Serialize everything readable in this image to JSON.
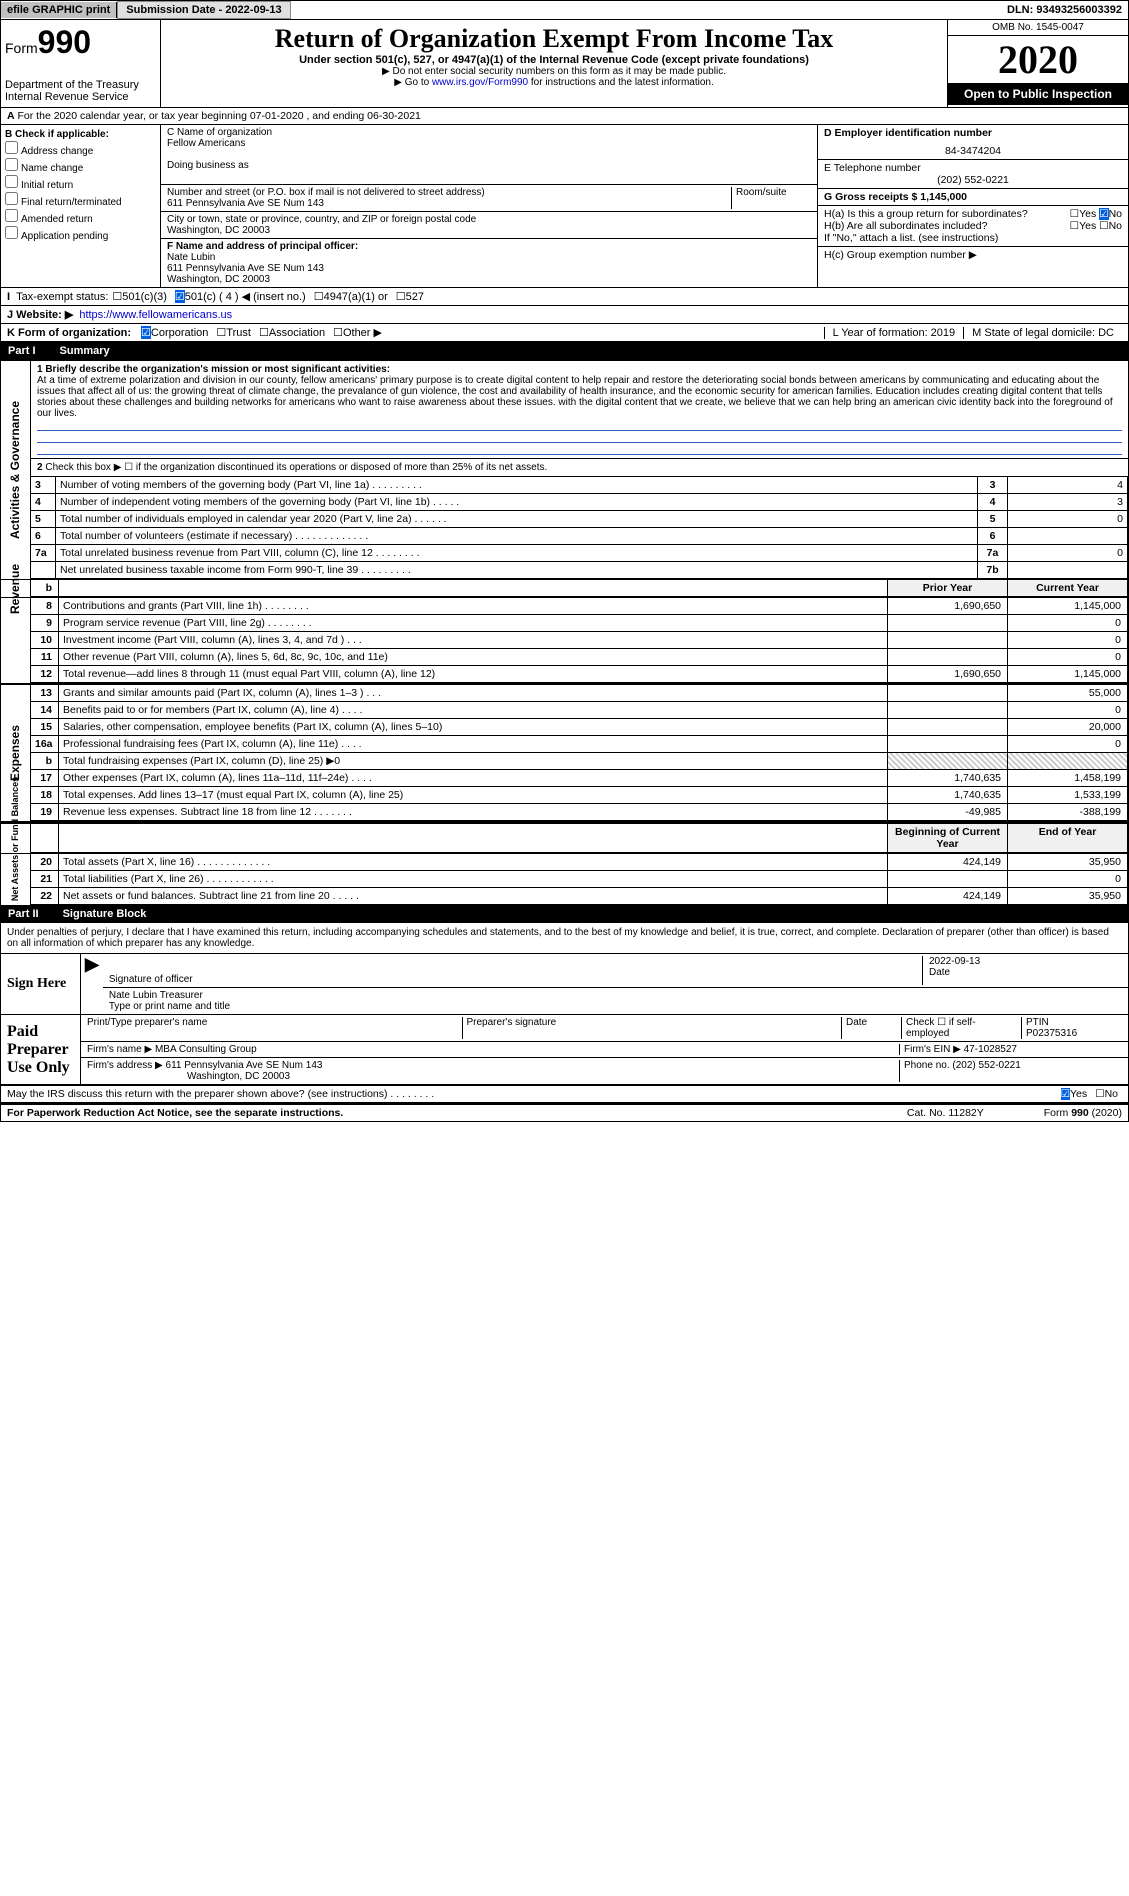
{
  "topbar": {
    "efile": "efile GRAPHIC print",
    "submission_btn": "Submission Date - 2022-09-13",
    "dln": "DLN: 93493256003392"
  },
  "header": {
    "form_label": "Form",
    "form_num": "990",
    "dept": "Department of the Treasury",
    "irs": "Internal Revenue Service",
    "title": "Return of Organization Exempt From Income Tax",
    "sub": "Under section 501(c), 527, or 4947(a)(1) of the Internal Revenue Code (except private foundations)",
    "note1": "▶ Do not enter social security numbers on this form as it may be made public.",
    "note2_pre": "▶ Go to ",
    "note2_link": "www.irs.gov/Form990",
    "note2_post": " for instructions and the latest information.",
    "omb": "OMB No. 1545-0047",
    "year": "2020",
    "open": "Open to Public Inspection"
  },
  "row_a": "For the 2020 calendar year, or tax year beginning 07-01-2020    , and ending 06-30-2021",
  "col_b": {
    "label": "B Check if applicable:",
    "opts": [
      "Address change",
      "Name change",
      "Initial return",
      "Final return/terminated",
      "Amended return",
      "Application pending"
    ]
  },
  "col_c": {
    "name_label": "C Name of organization",
    "name": "Fellow Americans",
    "dba": "Doing business as",
    "addr_label": "Number and street (or P.O. box if mail is not delivered to street address)",
    "room": "Room/suite",
    "addr": "611 Pennsylvania Ave SE Num 143",
    "city_label": "City or town, state or province, country, and ZIP or foreign postal code",
    "city": "Washington, DC  20003",
    "f_label": "F  Name and address of principal officer:",
    "f_name": "Nate Lubin",
    "f_addr": "611 Pennsylvania Ave SE Num 143",
    "f_city": "Washington, DC  20003"
  },
  "col_d": {
    "d_label": "D Employer identification number",
    "d_val": "84-3474204",
    "e_label": "E Telephone number",
    "e_val": "(202) 552-0221",
    "g_label": "G Gross receipts $ 1,145,000",
    "ha": "H(a)  Is this a group return for subordinates?",
    "hb": "H(b)  Are all subordinates included?",
    "hb_note": "If \"No,\" attach a list. (see instructions)",
    "hc": "H(c)  Group exemption number ▶",
    "yes": "Yes",
    "no": "No"
  },
  "tax_status": {
    "label": "Tax-exempt status:",
    "o1": "501(c)(3)",
    "o2": "501(c) ( 4 ) ◀ (insert no.)",
    "o3": "4947(a)(1) or",
    "o4": "527"
  },
  "website": {
    "label": "J Website: ▶",
    "url": "https://www.fellowamericans.us"
  },
  "row_k": {
    "label": "K Form of organization:",
    "o1": "Corporation",
    "o2": "Trust",
    "o3": "Association",
    "o4": "Other ▶",
    "l": "L Year of formation: 2019",
    "m": "M State of legal domicile: DC"
  },
  "part1": {
    "num": "Part I",
    "title": "Summary"
  },
  "mission": {
    "label": "1  Briefly describe the organization's mission or most significant activities:",
    "text": "At a time of extreme polarization and division in our county, fellow americans' primary purpose is to create digital content to help repair and restore the deteriorating social bonds between americans by communicating and educating about the issues that affect all of us: the growing threat of climate change, the prevalance of gun violence, the cost and availability of health insurance, and the economic security for american families. Education includes creating digital content that tells stories about these challenges and building networks for americans who want to raise awareness about these issues. with the digital content that we create, we believe that we can help bring an american civic identity back into the foreground of our lives."
  },
  "line2": "Check this box ▶ ☐ if the organization discontinued its operations or disposed of more than 25% of its net assets.",
  "lines_small": [
    {
      "n": "3",
      "d": "Number of voting members of the governing body (Part VI, line 1a)  .    .    .    .    .    .    .    .    .",
      "box": "3",
      "v": "4"
    },
    {
      "n": "4",
      "d": "Number of independent voting members of the governing body (Part VI, line 1b)  .    .    .    .    .",
      "box": "4",
      "v": "3"
    },
    {
      "n": "5",
      "d": "Total number of individuals employed in calendar year 2020 (Part V, line 2a)  .    .    .    .    .    .",
      "box": "5",
      "v": "0"
    },
    {
      "n": "6",
      "d": "Total number of volunteers (estimate if necessary)  .    .    .    .    .    .    .    .    .    .    .    .    .",
      "box": "6",
      "v": ""
    },
    {
      "n": "7a",
      "d": "Total unrelated business revenue from Part VIII, column (C), line 12  .    .    .    .    .    .    .    .",
      "box": "7a",
      "v": "0"
    },
    {
      "n": "",
      "d": "Net unrelated business taxable income from Form 990-T, line 39  .    .    .    .    .    .    .    .    .",
      "box": "7b",
      "v": ""
    }
  ],
  "col_headers": {
    "b": "b",
    "prior": "Prior Year",
    "current": "Current Year"
  },
  "sidebars": {
    "ag": "Activities & Governance",
    "rev": "Revenue",
    "exp": "Expenses",
    "na": "Net Assets or Fund Balances"
  },
  "revenue": [
    {
      "n": "8",
      "d": "Contributions and grants (Part VIII, line 1h)  .    .    .    .    .    .    .    .",
      "p": "1,690,650",
      "c": "1,145,000"
    },
    {
      "n": "9",
      "d": "Program service revenue (Part VIII, line 2g)  .    .    .    .    .    .    .    .",
      "p": "",
      "c": "0"
    },
    {
      "n": "10",
      "d": "Investment income (Part VIII, column (A), lines 3, 4, and 7d )  .    .    .",
      "p": "",
      "c": "0"
    },
    {
      "n": "11",
      "d": "Other revenue (Part VIII, column (A), lines 5, 6d, 8c, 9c, 10c, and 11e)",
      "p": "",
      "c": "0"
    },
    {
      "n": "12",
      "d": "Total revenue—add lines 8 through 11 (must equal Part VIII, column (A), line 12)",
      "p": "1,690,650",
      "c": "1,145,000"
    }
  ],
  "expenses": [
    {
      "n": "13",
      "d": "Grants and similar amounts paid (Part IX, column (A), lines 1–3 )  .    .    .",
      "p": "",
      "c": "55,000"
    },
    {
      "n": "14",
      "d": "Benefits paid to or for members (Part IX, column (A), line 4)  .    .    .    .",
      "p": "",
      "c": "0"
    },
    {
      "n": "15",
      "d": "Salaries, other compensation, employee benefits (Part IX, column (A), lines 5–10)",
      "p": "",
      "c": "20,000"
    },
    {
      "n": "16a",
      "d": "Professional fundraising fees (Part IX, column (A), line 11e)  .    .    .    .",
      "p": "",
      "c": "0"
    },
    {
      "n": "b",
      "d": "Total fundraising expenses (Part IX, column (D), line 25) ▶0",
      "p": "hatched",
      "c": "hatched"
    },
    {
      "n": "17",
      "d": "Other expenses (Part IX, column (A), lines 11a–11d, 11f–24e)  .    .    .    .",
      "p": "1,740,635",
      "c": "1,458,199"
    },
    {
      "n": "18",
      "d": "Total expenses. Add lines 13–17 (must equal Part IX, column (A), line 25)",
      "p": "1,740,635",
      "c": "1,533,199"
    },
    {
      "n": "19",
      "d": "Revenue less expenses. Subtract line 18 from line 12  .    .    .    .    .    .    .",
      "p": "-49,985",
      "c": "-388,199"
    }
  ],
  "balance_headers": {
    "prior": "Beginning of Current Year",
    "current": "End of Year"
  },
  "balances": [
    {
      "n": "20",
      "d": "Total assets (Part X, line 16)  .    .    .    .    .    .    .    .    .    .    .    .    .",
      "p": "424,149",
      "c": "35,950"
    },
    {
      "n": "21",
      "d": "Total liabilities (Part X, line 26)  .    .    .    .    .    .    .    .    .    .    .    .",
      "p": "",
      "c": "0"
    },
    {
      "n": "22",
      "d": "Net assets or fund balances. Subtract line 21 from line 20  .    .    .    .    .",
      "p": "424,149",
      "c": "35,950"
    }
  ],
  "part2": {
    "num": "Part II",
    "title": "Signature Block"
  },
  "perjury": "Under penalties of perjury, I declare that I have examined this return, including accompanying schedules and statements, and to the best of my knowledge and belief, it is true, correct, and complete. Declaration of preparer (other than officer) is based on all information of which preparer has any knowledge.",
  "sign": {
    "here": "Sign Here",
    "sig_label": "Signature of officer",
    "date": "2022-09-13",
    "date_label": "Date",
    "name": "Nate Lubin  Treasurer",
    "name_label": "Type or print name and title"
  },
  "preparer": {
    "label": "Paid Preparer Use Only",
    "print_label": "Print/Type preparer's name",
    "sig_label": "Preparer's signature",
    "date_label": "Date",
    "self_label": "Check ☐ if self-employed",
    "ptin_label": "PTIN",
    "ptin": "P02375316",
    "firm_label": "Firm's name    ▶",
    "firm": "MBA Consulting Group",
    "ein_label": "Firm's EIN ▶",
    "ein": "47-1028527",
    "addr_label": "Firm's address ▶",
    "addr": "611 Pennsylvania Ave SE Num 143",
    "city": "Washington, DC  20003",
    "phone_label": "Phone no.",
    "phone": "(202) 552-0221"
  },
  "discuss": "May the IRS discuss this return with the preparer shown above? (see instructions)   .    .    .    .    .    .    .    .",
  "footer": {
    "pra": "For Paperwork Reduction Act Notice, see the separate instructions.",
    "cat": "Cat. No. 11282Y",
    "form": "Form 990 (2020)"
  }
}
